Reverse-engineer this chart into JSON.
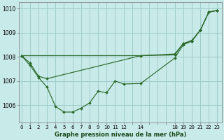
{
  "background_color": "#c8eae8",
  "grid_color": "#a0cccc",
  "line_color": "#2d6b2d",
  "marker_color": "#2d6b2d",
  "title": "Graphe pression niveau de la mer (hPa)",
  "ylim": [
    1005.3,
    1010.25
  ],
  "yticks": [
    1006,
    1007,
    1008,
    1009,
    1010
  ],
  "xtick_positions": [
    0,
    1,
    2,
    3,
    4,
    5,
    6,
    7,
    8,
    9,
    10,
    11,
    12,
    13,
    14,
    15,
    16,
    17,
    18,
    19,
    20,
    21,
    22,
    23
  ],
  "xtick_labels": [
    "0",
    "1",
    "2",
    "3",
    "4",
    "5",
    "6",
    "7",
    "8",
    "9",
    "10",
    "11",
    "12",
    "",
    "14",
    "",
    "",
    "",
    "18",
    "19",
    "20",
    "21",
    "22",
    "23"
  ],
  "xlim": [
    -0.3,
    23.5
  ],
  "series": [
    {
      "x": [
        0,
        1,
        2,
        3,
        4,
        5,
        6,
        7,
        8,
        9,
        10,
        11,
        12,
        14,
        18,
        19,
        20,
        21,
        22,
        23
      ],
      "y": [
        1008.05,
        1007.65,
        1007.15,
        1006.75,
        1005.95,
        1005.72,
        1005.72,
        1005.88,
        1006.1,
        1006.58,
        1006.52,
        1007.0,
        1006.88,
        1006.9,
        1007.95,
        1008.5,
        1008.65,
        1009.1,
        1009.85,
        1009.92
      ]
    },
    {
      "x": [
        0,
        1,
        2,
        3,
        14,
        18,
        19,
        20,
        21,
        22,
        23
      ],
      "y": [
        1008.05,
        1007.75,
        1007.2,
        1007.1,
        1008.05,
        1008.08,
        1008.55,
        1008.65,
        1009.1,
        1009.85,
        1009.92
      ]
    },
    {
      "x": [
        0,
        14,
        18,
        19,
        20,
        21,
        22,
        23
      ],
      "y": [
        1008.05,
        1008.05,
        1008.12,
        1008.55,
        1008.68,
        1009.1,
        1009.85,
        1009.92
      ]
    }
  ]
}
